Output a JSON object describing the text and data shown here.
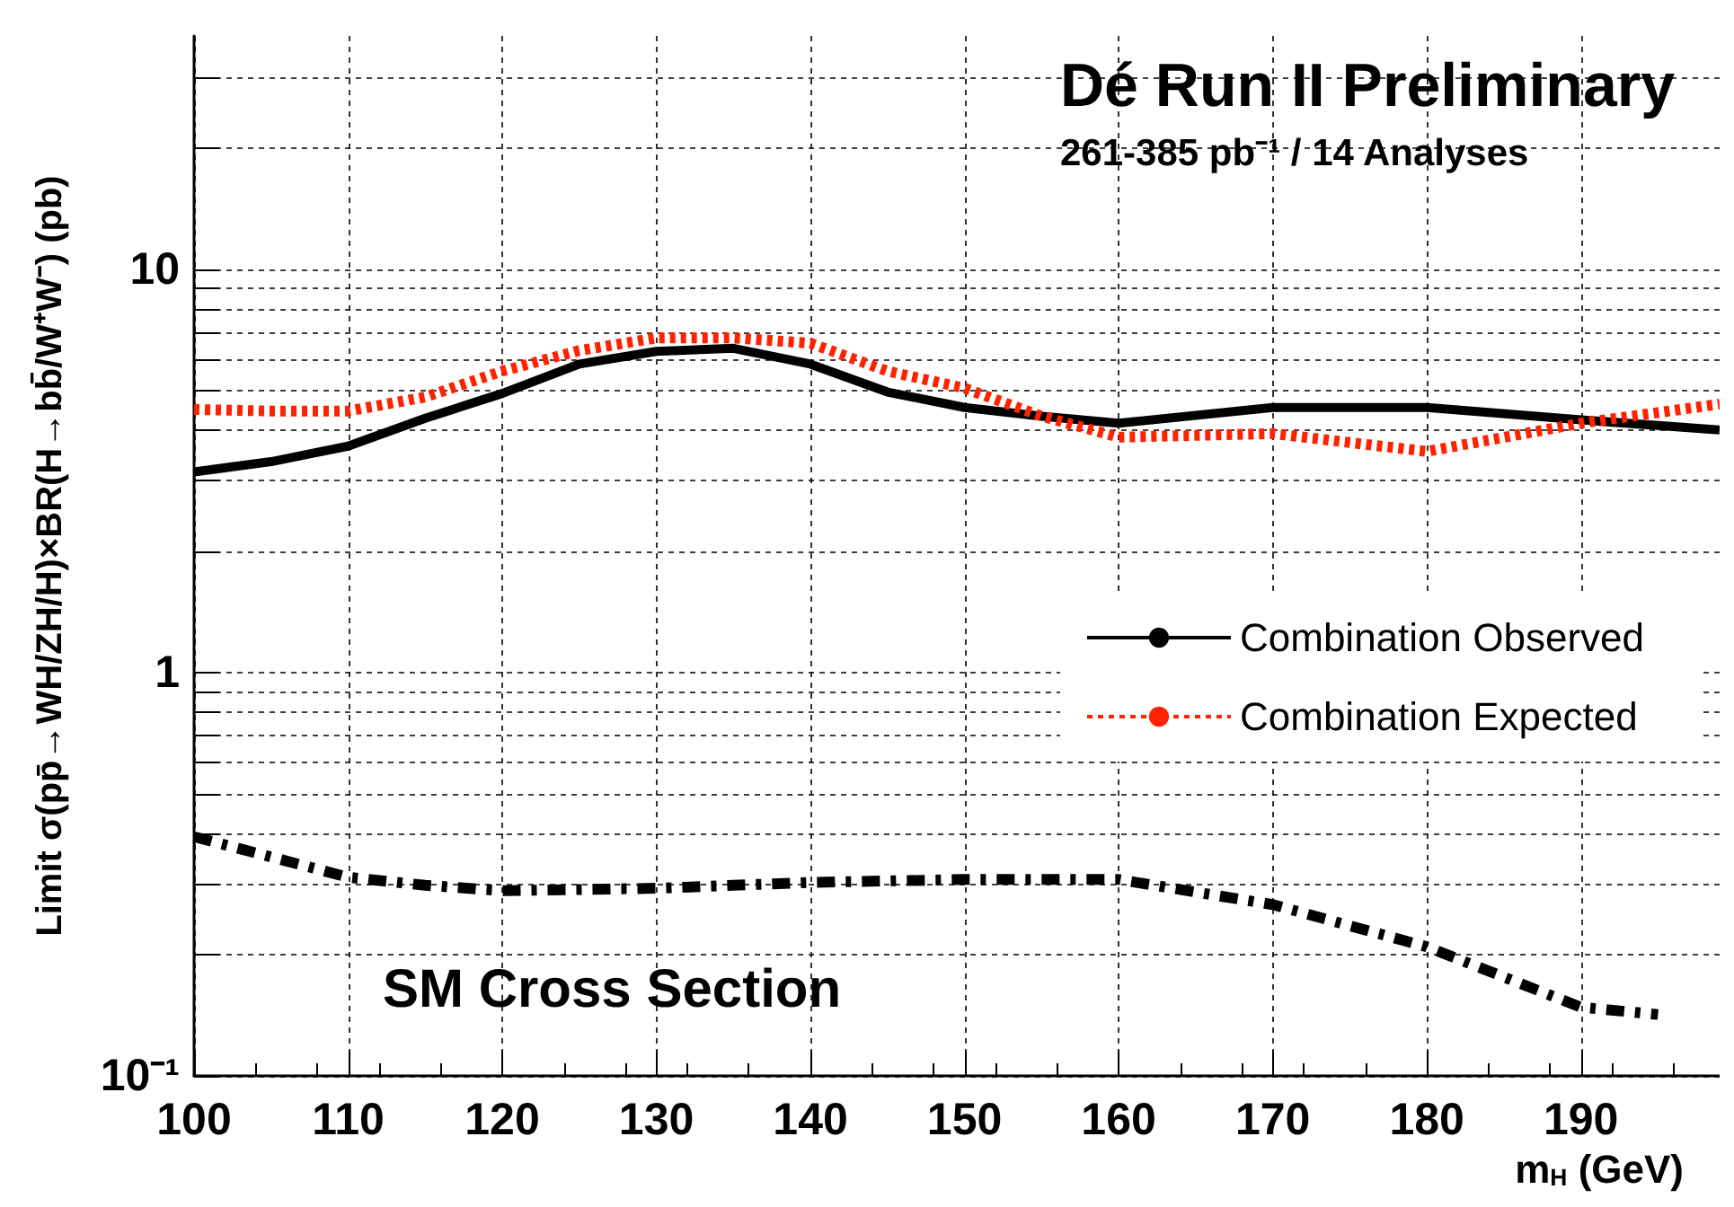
{
  "chart_data": {
    "type": "line",
    "title": "Dé Run II Preliminary",
    "subtitle": "261-385 pb⁻¹ / 14 Analyses",
    "xlabel": "m$_{H}$ (GeV)",
    "ylabel": "Limit σ(pp̄→WH/ZH/H)×BR(H→bb̄/W⁺W⁻) (pb)",
    "annotations": [
      "SM Cross Section"
    ],
    "xlim": [
      100,
      199
    ],
    "xticks": [
      100,
      110,
      120,
      130,
      140,
      150,
      160,
      170,
      180,
      190
    ],
    "ylim": [
      0.1,
      38
    ],
    "yticks": [
      {
        "value": 0.1,
        "label": "10⁻¹"
      },
      {
        "value": 0.2,
        "label": null
      },
      {
        "value": 0.3,
        "label": null
      },
      {
        "value": 0.4,
        "label": null
      },
      {
        "value": 0.5,
        "label": null
      },
      {
        "value": 0.6,
        "label": null
      },
      {
        "value": 0.7,
        "label": null
      },
      {
        "value": 0.8,
        "label": null
      },
      {
        "value": 0.9,
        "label": null
      },
      1,
      {
        "value": 2,
        "label": null
      },
      {
        "value": 3,
        "label": null
      },
      {
        "value": 4,
        "label": null
      },
      {
        "value": 5,
        "label": null
      },
      {
        "value": 6,
        "label": null
      },
      {
        "value": 7,
        "label": null
      },
      {
        "value": 8,
        "label": null
      },
      {
        "value": 9,
        "label": null
      },
      10,
      {
        "value": 20,
        "label": null
      },
      {
        "value": 30,
        "label": null
      }
    ],
    "log": "y",
    "grid": true,
    "legend": "right",
    "marker": "none",
    "series": [
      {
        "name": "Combination Observed",
        "color": "#000000",
        "line_style": "solid",
        "x": [
          100,
          105,
          110,
          115,
          120,
          125,
          130,
          135,
          140,
          145,
          150,
          155,
          160,
          170,
          180,
          190,
          199
        ],
        "values": [
          3.15,
          3.34,
          3.65,
          4.28,
          4.93,
          5.83,
          6.27,
          6.38,
          5.83,
          4.97,
          4.55,
          4.33,
          4.16,
          4.55,
          4.55,
          4.24,
          4.0
        ]
      },
      {
        "name": "Combination Expected",
        "color": "#ff2200",
        "line_style": "dotted",
        "x": [
          100,
          105,
          110,
          115,
          120,
          125,
          130,
          135,
          140,
          145,
          150,
          155,
          160,
          170,
          180,
          190,
          199
        ],
        "values": [
          4.5,
          4.46,
          4.46,
          4.83,
          5.6,
          6.3,
          6.77,
          6.77,
          6.57,
          5.6,
          5.08,
          4.33,
          3.84,
          3.92,
          3.54,
          4.16,
          4.64
        ]
      },
      {
        "color": "#000000",
        "line_style": "dashed",
        "x": [
          100,
          110,
          115,
          120,
          130,
          140,
          150,
          160,
          170,
          180,
          190,
          195
        ],
        "values": [
          0.392,
          0.311,
          0.297,
          0.288,
          0.292,
          0.302,
          0.307,
          0.307,
          0.266,
          0.209,
          0.148,
          0.142
        ]
      }
    ]
  }
}
